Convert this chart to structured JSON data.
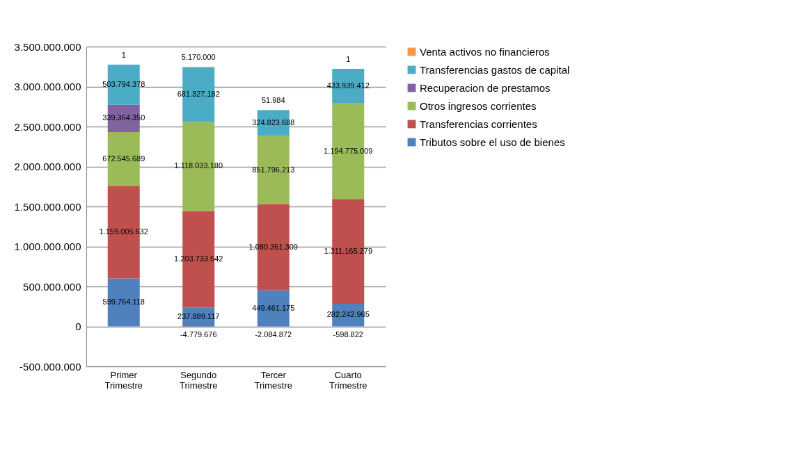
{
  "chart_data": {
    "type": "bar",
    "stacked": true,
    "categories": [
      "Primer Trimestre",
      "Segundo Trimestre",
      "Tercer Trimestre",
      "Cuarto Trimestre"
    ],
    "series": [
      {
        "name": "Tributos sobre el uso de bienes",
        "color": "#4f81bd",
        "values": [
          599764118,
          237889117,
          449461175,
          282242965
        ],
        "value_labels": [
          "599.764.118",
          "237.889.117",
          "449.461.175",
          "282.242.965"
        ]
      },
      {
        "name": "Transferencias corrientes",
        "color": "#c0504d",
        "values": [
          1159005632,
          1203733542,
          1080361309,
          1311165279
        ],
        "value_labels": [
          "1.159.005.632",
          "1.203.733.542",
          "1.080.361.309",
          "1.311.165.279"
        ]
      },
      {
        "name": "Otros ingresos corrientes",
        "color": "#9bbb59",
        "values": [
          672545689,
          1118033180,
          851796213,
          1194775009
        ],
        "value_labels": [
          "672.545.689",
          "1.118.033.180",
          "851.796.213",
          "1.194.775.009"
        ]
      },
      {
        "name": "Recuperacion de prestamos",
        "color": "#8064a2",
        "values": [
          339364350,
          -4779676,
          -2084872,
          -598822
        ],
        "value_labels": [
          "339.364.350",
          "-4.779.676",
          "-2.084.872",
          "-598.822"
        ]
      },
      {
        "name": "Transferencias gastos de capital",
        "color": "#4bacc6",
        "values": [
          503794378,
          681327182,
          324823688,
          433939412
        ],
        "value_labels": [
          "503.794.378",
          "681.327.182",
          "324.823.688",
          "433.939.412"
        ]
      },
      {
        "name": "Venta activos no financieros",
        "color": "#f79646",
        "values": [
          1,
          5170000,
          51984,
          1
        ],
        "value_labels": [
          "1",
          "5.170.000",
          "51.984",
          "1"
        ]
      }
    ],
    "ylim": [
      -500000000,
      3500000000
    ],
    "yticks": [
      {
        "value": -500000000,
        "label": "-500.000.000"
      },
      0,
      {
        "value": 500000000,
        "label": "500.000.000"
      },
      {
        "value": 1000000000,
        "label": "1.000.000.000"
      },
      {
        "value": 1500000000,
        "label": "1.500.000.000"
      },
      {
        "value": 2000000000,
        "label": "2.000.000.000"
      },
      {
        "value": 2500000000,
        "label": "2.500.000.000"
      },
      {
        "value": 3000000000,
        "label": "3.000.000.000"
      },
      {
        "value": 3500000000,
        "label": "3.500.000.000"
      }
    ],
    "grid": "y",
    "legend": "right"
  }
}
